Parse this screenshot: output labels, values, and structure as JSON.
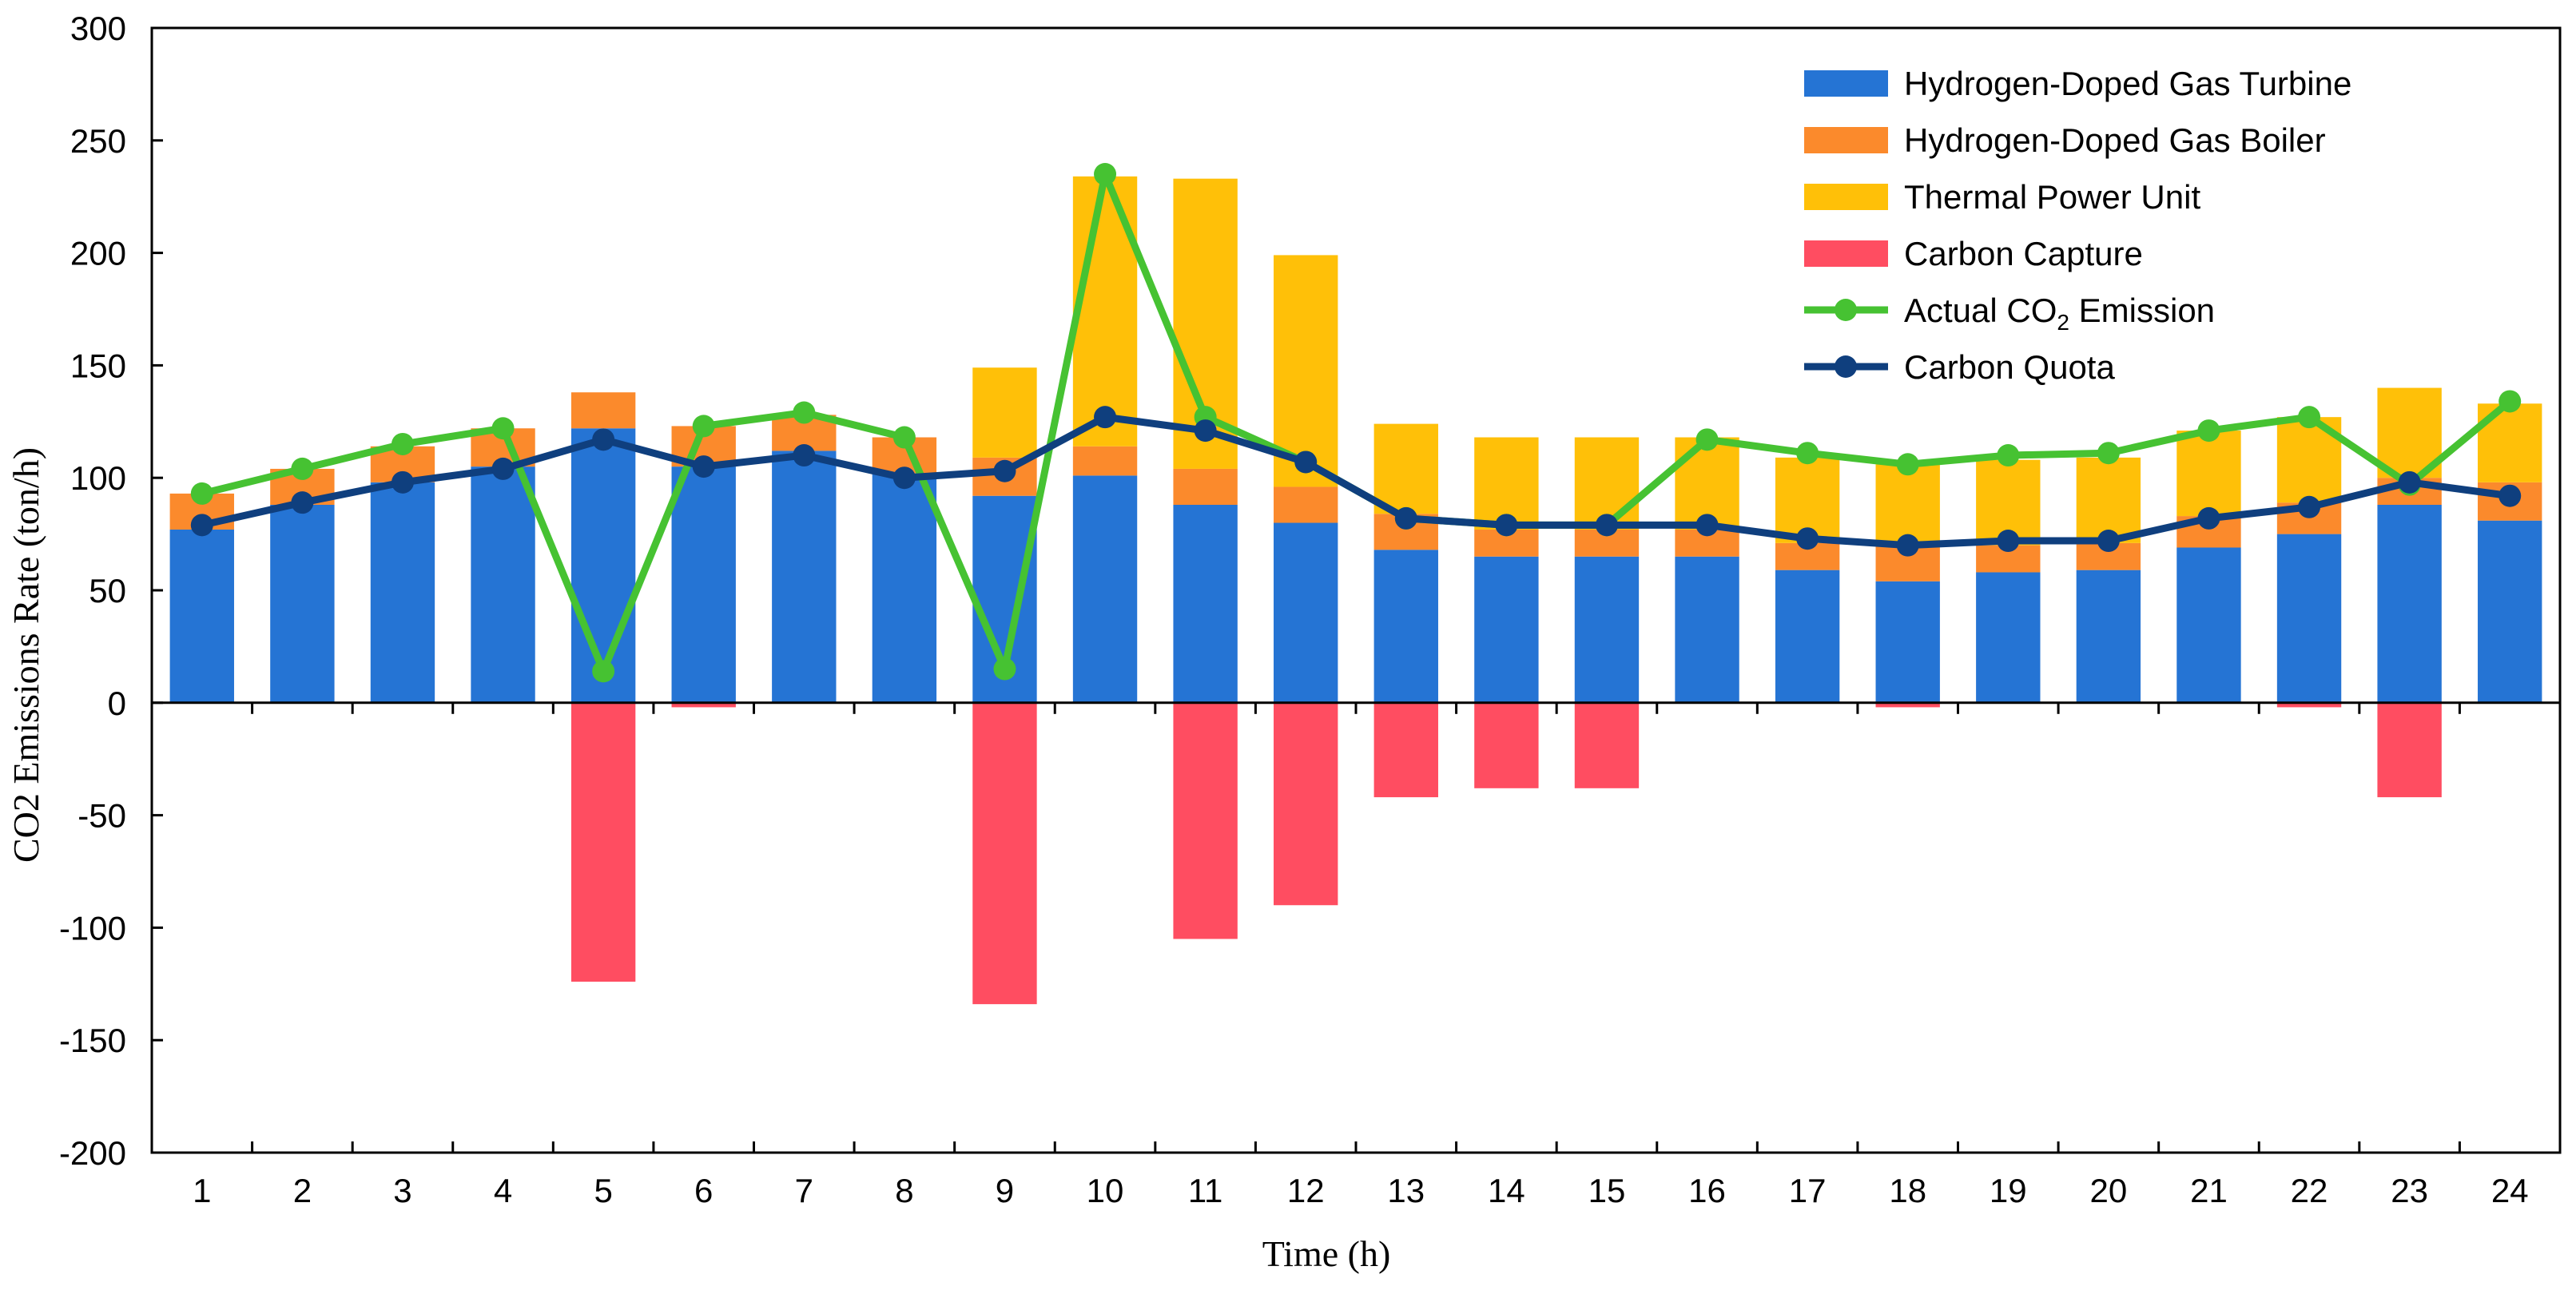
{
  "chart_data": {
    "type": "bar",
    "title": "",
    "xlabel": "Time (h)",
    "ylabel": "CO2 Emissions Rate (ton/h)",
    "ylim": [
      -200,
      300
    ],
    "yticks": [
      300,
      250,
      200,
      150,
      100,
      50,
      0,
      -50,
      -100,
      -150,
      -200
    ],
    "categories": [
      "1",
      "2",
      "3",
      "4",
      "5",
      "6",
      "7",
      "8",
      "9",
      "10",
      "11",
      "12",
      "13",
      "14",
      "15",
      "16",
      "17",
      "18",
      "19",
      "20",
      "21",
      "22",
      "23",
      "24"
    ],
    "legend_position": "top-right",
    "stacked_series": [
      {
        "name": "Hydrogen-Doped Gas Turbine",
        "color": "#2574d4",
        "values": [
          77,
          88,
          98,
          105,
          122,
          105,
          112,
          102,
          92,
          101,
          88,
          80,
          68,
          65,
          65,
          65,
          59,
          54,
          58,
          59,
          69,
          75,
          88,
          81
        ]
      },
      {
        "name": "Hydrogen-Doped Gas Boiler",
        "color": "#fb8a2c",
        "values": [
          16,
          16,
          16,
          17,
          16,
          18,
          16,
          16,
          17,
          13,
          16,
          16,
          16,
          12,
          12,
          12,
          12,
          16,
          12,
          12,
          14,
          14,
          12,
          17
        ]
      },
      {
        "name": "Thermal Power Unit",
        "color": "#ffc008",
        "values": [
          0,
          0,
          0,
          0,
          0,
          0,
          0,
          0,
          40,
          120,
          129,
          103,
          40,
          41,
          41,
          41,
          38,
          36,
          38,
          38,
          38,
          38,
          40,
          35
        ]
      }
    ],
    "negative_series": {
      "name": "Carbon Capture",
      "color": "#ff4d61",
      "values": [
        0,
        0,
        0,
        0,
        -124,
        -2,
        0,
        0,
        -134,
        0,
        -105,
        -90,
        -42,
        -38,
        -38,
        0,
        0,
        -2,
        0,
        0,
        0,
        -2,
        -42,
        0
      ]
    },
    "line_series": [
      {
        "name": "Actual CO",
        "name_subscript": "2",
        "name_suffix": " Emission",
        "color": "#46c232",
        "values": [
          93,
          104,
          115,
          122,
          14,
          123,
          129,
          118,
          15,
          235,
          127,
          107,
          82,
          79,
          79,
          117,
          111,
          106,
          110,
          111,
          121,
          127,
          97,
          134
        ]
      },
      {
        "name": "Carbon Quota",
        "color": "#0f3f7e",
        "values": [
          79,
          89,
          98,
          104,
          117,
          105,
          110,
          100,
          103,
          127,
          121,
          107,
          82,
          79,
          79,
          79,
          73,
          70,
          72,
          72,
          82,
          87,
          98,
          92
        ]
      }
    ]
  }
}
